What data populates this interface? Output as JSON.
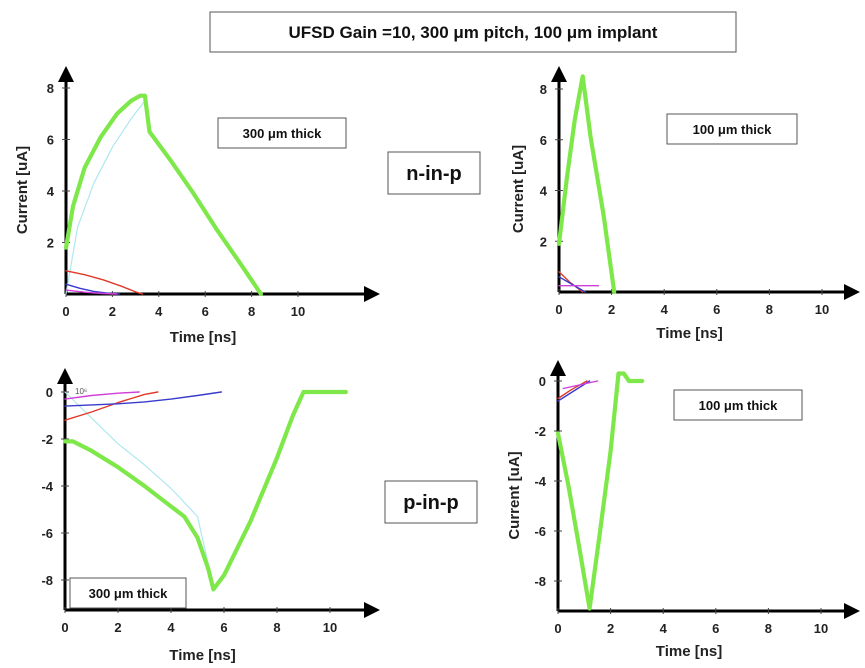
{
  "title": "UFSD Gain =10, 300 μm pitch, 100 μm implant",
  "colors": {
    "total": "#7ee84a",
    "electrons": "#aee8f0",
    "holes": "#e03a2a",
    "gain_electrons": "#3a3acc",
    "gain_holes": "#d040d8",
    "axis": "#000000"
  },
  "chart_data": [
    {
      "type": "line",
      "panel": "top-left",
      "device_label": "n-in-p",
      "thickness_label": "300 μm thick",
      "xlabel": "Time [ns]",
      "ylabel": "Current [uA]",
      "xlim": [
        0,
        11.3
      ],
      "ylim": [
        0,
        9.3
      ],
      "x_ticks": [
        0,
        2,
        4,
        6,
        8,
        10
      ],
      "y_ticks": [
        2,
        4,
        6,
        8
      ],
      "grid": false,
      "series": [
        {
          "role": "total",
          "x": [
            0,
            0.3,
            0.8,
            1.5,
            2.2,
            2.8,
            3.2,
            3.4,
            3.6,
            4.5,
            5.5,
            6.5,
            7.5,
            8.4
          ],
          "y": [
            1.8,
            3.4,
            4.9,
            6.1,
            7.0,
            7.5,
            7.7,
            7.7,
            6.3,
            5.2,
            3.9,
            2.5,
            1.2,
            0.0
          ]
        },
        {
          "role": "electrons",
          "x": [
            0,
            0.5,
            1.2,
            2.0,
            2.8,
            3.4,
            3.6
          ],
          "y": [
            0.0,
            2.6,
            4.3,
            5.7,
            6.8,
            7.5,
            6.3
          ]
        },
        {
          "role": "holes",
          "x": [
            0,
            0.8,
            1.6,
            2.4,
            3.0,
            3.3
          ],
          "y": [
            0.9,
            0.75,
            0.55,
            0.3,
            0.08,
            0.0
          ]
        },
        {
          "role": "gain_electrons",
          "x": [
            0,
            0.6,
            1.2,
            1.8,
            2.3
          ],
          "y": [
            0.38,
            0.22,
            0.1,
            0.03,
            0.0
          ]
        },
        {
          "role": "gain_holes",
          "x": [
            0,
            0.8,
            1.6,
            2.2
          ],
          "y": [
            0.15,
            0.07,
            0.02,
            0.0
          ]
        }
      ]
    },
    {
      "type": "line",
      "panel": "top-right",
      "thickness_label": "100 μm thick",
      "xlabel": "Time [ns]",
      "ylabel": "Current [uA]",
      "xlim": [
        -0.4,
        11.9
      ],
      "ylim": [
        0,
        9.5
      ],
      "x_ticks": [
        0,
        2,
        4,
        6,
        8,
        10
      ],
      "y_ticks": [
        2,
        4,
        6,
        8
      ],
      "grid": false,
      "series": [
        {
          "role": "total",
          "x": [
            0,
            0.3,
            0.6,
            0.9,
            1.2,
            1.7,
            2.1
          ],
          "y": [
            1.9,
            4.5,
            6.8,
            8.5,
            6.1,
            3.0,
            0.0
          ]
        },
        {
          "role": "holes",
          "x": [
            0,
            0.4,
            0.9
          ],
          "y": [
            0.8,
            0.4,
            0.0
          ]
        },
        {
          "role": "gain_electrons",
          "x": [
            0,
            0.5,
            1.0
          ],
          "y": [
            0.6,
            0.3,
            0.0
          ]
        },
        {
          "role": "gain_holes",
          "x": [
            0,
            1.5
          ],
          "y": [
            0.25,
            0.25
          ]
        }
      ]
    },
    {
      "type": "line",
      "panel": "bottom-left",
      "device_label": "p-in-p",
      "thickness_label": "300 μm thick",
      "scale_note": "10⁶",
      "xlabel": "Time [ns]",
      "xlim": [
        0,
        11.6
      ],
      "ylim": [
        -9.1,
        0.9
      ],
      "x_ticks": [
        0,
        2,
        4,
        6,
        8,
        10
      ],
      "y_ticks": [
        0,
        -2,
        -4,
        -6,
        -8
      ],
      "grid": false,
      "series": [
        {
          "role": "total",
          "x": [
            0,
            0.3,
            1.0,
            2.0,
            3.0,
            3.8,
            4.5,
            5.0,
            5.4,
            5.6,
            6.0,
            7.0,
            8.0,
            8.6,
            9.0,
            10.6
          ],
          "y": [
            -2.1,
            -2.1,
            -2.5,
            -3.2,
            -4.0,
            -4.7,
            -5.3,
            -6.2,
            -7.5,
            -8.4,
            -7.8,
            -5.5,
            -2.8,
            -1.0,
            0.0,
            0.0
          ]
        },
        {
          "role": "electrons",
          "x": [
            0,
            1.0,
            2.0,
            3.0,
            4.0,
            5.0,
            5.6
          ],
          "y": [
            0.0,
            -1.1,
            -2.2,
            -3.1,
            -4.1,
            -5.3,
            -8.3
          ]
        },
        {
          "role": "holes",
          "x": [
            0,
            1.0,
            2.0,
            3.0,
            3.5
          ],
          "y": [
            -1.2,
            -0.85,
            -0.45,
            -0.1,
            0.0
          ]
        },
        {
          "role": "gain_electrons",
          "x": [
            0,
            1.0,
            2.0,
            3.0,
            4.0,
            5.0,
            5.9
          ],
          "y": [
            -0.6,
            -0.55,
            -0.5,
            -0.42,
            -0.3,
            -0.15,
            0.0
          ]
        },
        {
          "role": "gain_holes",
          "x": [
            0,
            1.0,
            2.0,
            2.8
          ],
          "y": [
            -0.3,
            -0.15,
            -0.05,
            0.0
          ]
        }
      ]
    },
    {
      "type": "line",
      "panel": "bottom-right",
      "thickness_label": "100 μm thick",
      "xlabel": "Time [ns]",
      "ylabel": "Current [uA]",
      "xlim": [
        -0.2,
        12.0
      ],
      "ylim": [
        -9.5,
        0.7
      ],
      "x_ticks": [
        0,
        2,
        4,
        6,
        8,
        10
      ],
      "y_ticks": [
        0,
        -2,
        -4,
        -6,
        -8
      ],
      "grid": false,
      "series": [
        {
          "role": "total",
          "x": [
            0,
            0.4,
            0.8,
            1.2,
            1.6,
            2.0,
            2.3,
            2.5,
            2.7,
            3.2
          ],
          "y": [
            -2.1,
            -4.2,
            -6.6,
            -9.1,
            -6.0,
            -2.8,
            0.3,
            0.3,
            0.0,
            0.0
          ]
        },
        {
          "role": "holes",
          "x": [
            0,
            0.5,
            1.1
          ],
          "y": [
            -0.7,
            -0.35,
            0.0
          ]
        },
        {
          "role": "gain_electrons",
          "x": [
            0,
            0.6,
            1.2
          ],
          "y": [
            -0.8,
            -0.4,
            0.0
          ]
        },
        {
          "role": "gain_holes",
          "x": [
            0.2,
            1.5
          ],
          "y": [
            -0.3,
            0.0
          ]
        }
      ]
    }
  ]
}
